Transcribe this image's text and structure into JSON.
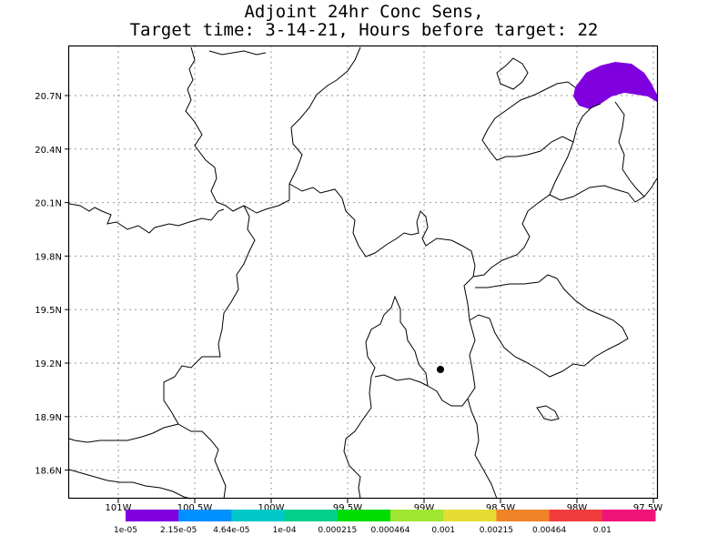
{
  "title": {
    "line1": "Adjoint 24hr Conc Sens,",
    "line2": "Target time: 3-14-21, Hours before target: 22"
  },
  "map": {
    "lat_ticks": [
      "20.7N",
      "20.4N",
      "20.1N",
      "19.8N",
      "19.5N",
      "19.2N",
      "18.9N",
      "18.6N"
    ],
    "lon_ticks": [
      "101W",
      "100.5W",
      "100W",
      "99.5W",
      "99W",
      "98.5W",
      "98W",
      "97.5W"
    ],
    "grid": true,
    "marker": "target-point",
    "sensitivity_colors": [
      "#8000e0"
    ]
  },
  "colorbar": {
    "colors": [
      "#8000e0",
      "#0090ff",
      "#00c8c8",
      "#00d08a",
      "#00dc00",
      "#a0e632",
      "#e6dc32",
      "#f08228",
      "#f03c3c",
      "#f0147a"
    ],
    "labels": [
      "1e-05",
      "2.15e-05",
      "4.64e-05",
      "1e-04",
      "0.000215",
      "0.000464",
      "0.001",
      "0.00215",
      "0.00464",
      "0.01"
    ]
  }
}
